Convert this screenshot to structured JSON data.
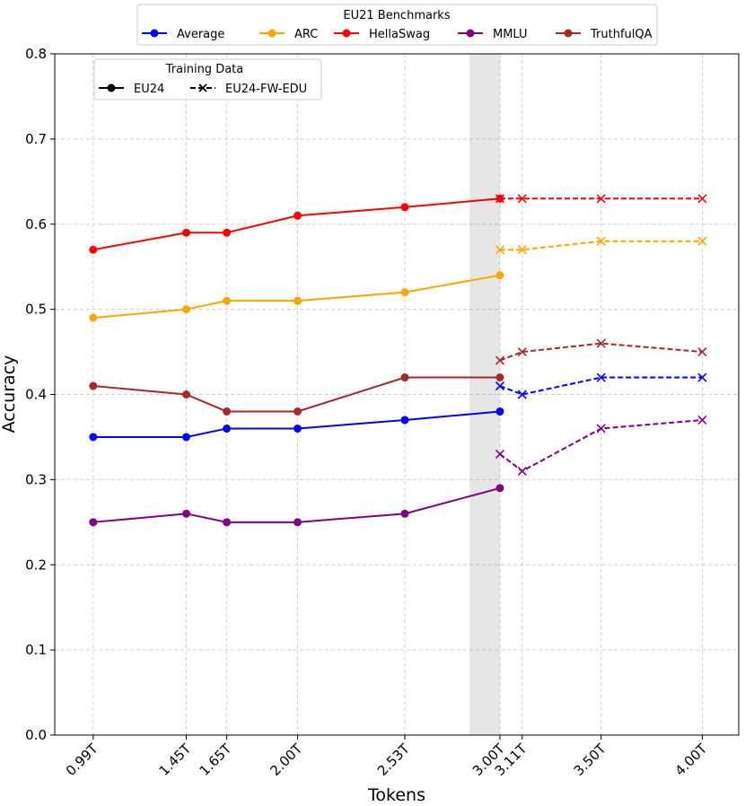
{
  "chart_data": {
    "type": "line",
    "xlabel": "Tokens",
    "ylabel": "Accuracy",
    "ylim": [
      0,
      0.8
    ],
    "xlim": [
      0.8,
      4.18
    ],
    "yticks": [
      "0.0",
      "0.1",
      "0.2",
      "0.3",
      "0.4",
      "0.5",
      "0.6",
      "0.7",
      "0.8"
    ],
    "xticks": [
      {
        "value": 0.99,
        "label": "0.99T"
      },
      {
        "value": 1.45,
        "label": "1.45T"
      },
      {
        "value": 1.65,
        "label": "1.65T"
      },
      {
        "value": 2.0,
        "label": "2.00T"
      },
      {
        "value": 2.53,
        "label": "2.53T"
      },
      {
        "value": 3.0,
        "label": "3.00T"
      },
      {
        "value": 3.11,
        "label": "3.11T"
      },
      {
        "value": 3.5,
        "label": "3.50T"
      },
      {
        "value": 4.0,
        "label": "4.00T"
      }
    ],
    "grid": true,
    "shaded_region": [
      2.85,
      3.0
    ],
    "benchmark_legend": {
      "title": "EU21 Benchmarks",
      "placement": "top-center"
    },
    "training_legend": {
      "title": "Training Data",
      "placement": "top-left",
      "entries": [
        {
          "label": "EU24",
          "style": "solid",
          "marker": "circle"
        },
        {
          "label": "EU24-FW-EDU",
          "style": "dashed",
          "marker": "x"
        }
      ]
    },
    "series": [
      {
        "name": "Average",
        "color": "#0000ff",
        "eu24": {
          "x": [
            0.99,
            1.45,
            1.65,
            2.0,
            2.53,
            3.0
          ],
          "y": [
            0.35,
            0.35,
            0.36,
            0.36,
            0.37,
            0.38
          ]
        },
        "eu24_fw_edu": {
          "x": [
            3.0,
            3.11,
            3.5,
            4.0
          ],
          "y": [
            0.41,
            0.4,
            0.42,
            0.42
          ]
        }
      },
      {
        "name": "ARC",
        "color": "#ffa500",
        "eu24": {
          "x": [
            0.99,
            1.45,
            1.65,
            2.0,
            2.53,
            3.0
          ],
          "y": [
            0.49,
            0.5,
            0.51,
            0.51,
            0.52,
            0.54
          ]
        },
        "eu24_fw_edu": {
          "x": [
            3.0,
            3.11,
            3.5,
            4.0
          ],
          "y": [
            0.57,
            0.57,
            0.58,
            0.58
          ]
        }
      },
      {
        "name": "HellaSwag",
        "color": "#ff0000",
        "eu24": {
          "x": [
            0.99,
            1.45,
            1.65,
            2.0,
            2.53,
            3.0
          ],
          "y": [
            0.57,
            0.59,
            0.59,
            0.61,
            0.62,
            0.63
          ]
        },
        "eu24_fw_edu": {
          "x": [
            3.0,
            3.11,
            3.5,
            4.0
          ],
          "y": [
            0.63,
            0.63,
            0.63,
            0.63
          ]
        }
      },
      {
        "name": "MMLU",
        "color": "#800080",
        "eu24": {
          "x": [
            0.99,
            1.45,
            1.65,
            2.0,
            2.53,
            3.0
          ],
          "y": [
            0.25,
            0.26,
            0.25,
            0.25,
            0.26,
            0.29
          ]
        },
        "eu24_fw_edu": {
          "x": [
            3.0,
            3.11,
            3.5,
            4.0
          ],
          "y": [
            0.33,
            0.31,
            0.36,
            0.37
          ]
        }
      },
      {
        "name": "TruthfulQA",
        "color": "#a52a2a",
        "eu24": {
          "x": [
            0.99,
            1.45,
            1.65,
            2.0,
            2.53,
            3.0
          ],
          "y": [
            0.41,
            0.4,
            0.38,
            0.38,
            0.42,
            0.42
          ]
        },
        "eu24_fw_edu": {
          "x": [
            3.0,
            3.11,
            3.5,
            4.0
          ],
          "y": [
            0.44,
            0.45,
            0.46,
            0.45
          ]
        }
      }
    ]
  }
}
